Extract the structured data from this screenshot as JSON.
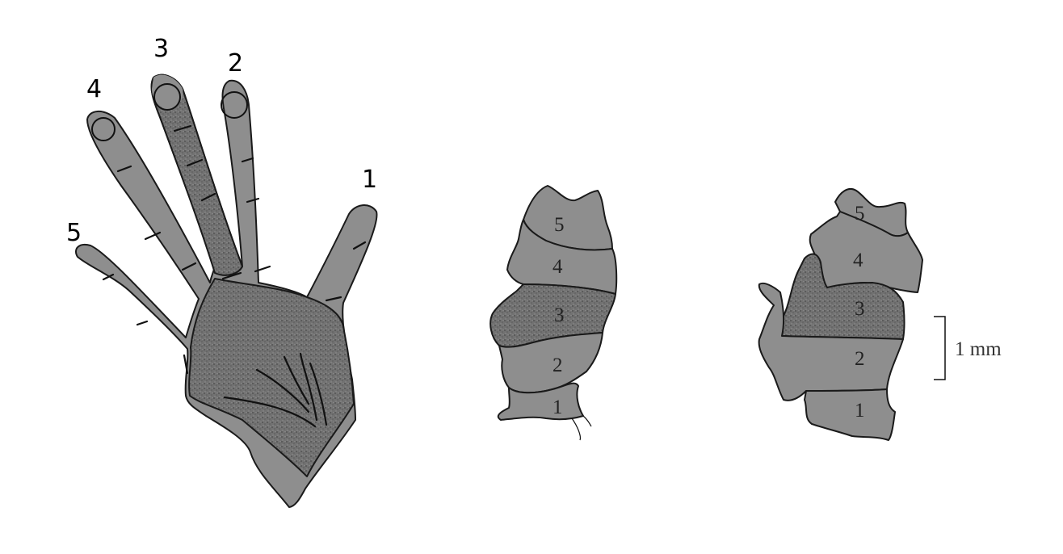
{
  "hand": {
    "digit_labels": [
      "1",
      "2",
      "3",
      "4",
      "5"
    ]
  },
  "map_a": {
    "zone_labels": [
      "5",
      "4",
      "3",
      "2",
      "1"
    ]
  },
  "map_b": {
    "zone_labels": [
      "5",
      "4",
      "3",
      "2",
      "1"
    ]
  },
  "scale_bar": {
    "label": "1 mm"
  },
  "colors": {
    "region_fill": "#8e8e8e",
    "highlight_fill": "#6f6f6f",
    "outline": "#1a1a1a"
  }
}
